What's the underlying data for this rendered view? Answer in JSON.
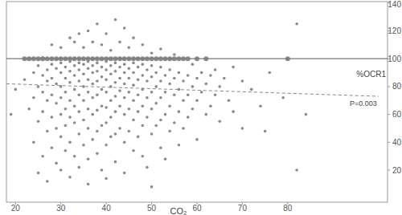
{
  "chart_data": {
    "type": "scatter",
    "x_label": "CO₂",
    "y_label": "%OCR1",
    "xlim": [
      18,
      102
    ],
    "ylim": [
      -3,
      141
    ],
    "xticks": [
      20,
      30,
      40,
      50,
      60,
      70,
      80
    ],
    "yticks": [
      20,
      40,
      60,
      80,
      100,
      120,
      140
    ],
    "grid": false,
    "color": "#8a8a8a",
    "marker": "circle",
    "reference_line": 100,
    "trend_line": {
      "x": [
        18,
        100
      ],
      "y": [
        82,
        73
      ],
      "label": "P=0.003"
    },
    "x": [
      19,
      20,
      22,
      22,
      23,
      23,
      24,
      24,
      24,
      24,
      25,
      25,
      25,
      25,
      25,
      26,
      26,
      26,
      26,
      26,
      26,
      27,
      27,
      27,
      27,
      27,
      27,
      28,
      28,
      28,
      28,
      28,
      28,
      28,
      29,
      29,
      29,
      29,
      29,
      29,
      30,
      30,
      30,
      30,
      30,
      30,
      30,
      30,
      30,
      31,
      31,
      31,
      31,
      31,
      31,
      31,
      32,
      32,
      32,
      32,
      32,
      32,
      32,
      32,
      32,
      33,
      33,
      33,
      33,
      33,
      33,
      33,
      33,
      34,
      34,
      34,
      34,
      34,
      34,
      34,
      34,
      34,
      35,
      35,
      35,
      35,
      35,
      35,
      35,
      35,
      36,
      36,
      36,
      36,
      36,
      36,
      36,
      36,
      36,
      36,
      37,
      37,
      37,
      37,
      37,
      37,
      37,
      37,
      38,
      38,
      38,
      38,
      38,
      38,
      38,
      38,
      38,
      39,
      39,
      39,
      39,
      39,
      39,
      39,
      39,
      40,
      40,
      40,
      40,
      40,
      40,
      40,
      40,
      40,
      40,
      41,
      41,
      41,
      41,
      41,
      41,
      41,
      41,
      42,
      42,
      42,
      42,
      42,
      42,
      42,
      42,
      42,
      43,
      43,
      43,
      43,
      43,
      43,
      43,
      44,
      44,
      44,
      44,
      44,
      44,
      44,
      44,
      44,
      45,
      45,
      45,
      45,
      45,
      45,
      45,
      46,
      46,
      46,
      46,
      46,
      46,
      46,
      46,
      47,
      47,
      47,
      47,
      47,
      47,
      48,
      48,
      48,
      48,
      48,
      48,
      48,
      48,
      49,
      49,
      49,
      49,
      49,
      49,
      50,
      50,
      50,
      50,
      50,
      50,
      50,
      50,
      51,
      51,
      51,
      51,
      51,
      52,
      52,
      52,
      52,
      52,
      52,
      52,
      53,
      53,
      53,
      53,
      53,
      54,
      54,
      54,
      54,
      54,
      55,
      55,
      55,
      55,
      55,
      56,
      56,
      56,
      56,
      56,
      57,
      57,
      57,
      57,
      58,
      58,
      58,
      58,
      59,
      59,
      59,
      60,
      60,
      60,
      60,
      61,
      61,
      62,
      62,
      62,
      63,
      63,
      64,
      64,
      65,
      65,
      66,
      67,
      68,
      68,
      70,
      70,
      72,
      74,
      75,
      76,
      79,
      80,
      82,
      82,
      84
    ],
    "y": [
      60,
      78,
      85,
      100,
      100,
      64,
      100,
      90,
      72,
      40,
      100,
      95,
      80,
      18,
      55,
      100,
      88,
      76,
      62,
      30,
      100,
      100,
      92,
      84,
      70,
      48,
      12,
      100,
      96,
      86,
      74,
      58,
      36,
      110,
      100,
      93,
      82,
      68,
      50,
      25,
      100,
      97,
      90,
      80,
      72,
      60,
      44,
      20,
      108,
      100,
      94,
      86,
      76,
      64,
      52,
      34,
      100,
      98,
      91,
      83,
      70,
      58,
      40,
      115,
      15,
      100,
      95,
      88,
      78,
      66,
      54,
      30,
      112,
      100,
      97,
      92,
      84,
      74,
      62,
      46,
      22,
      118,
      100,
      96,
      89,
      80,
      70,
      56,
      38,
      108,
      100,
      98,
      93,
      85,
      76,
      64,
      50,
      28,
      120,
      10,
      100,
      95,
      90,
      82,
      72,
      60,
      42,
      112,
      100,
      97,
      91,
      84,
      74,
      63,
      48,
      32,
      125,
      100,
      94,
      87,
      78,
      66,
      52,
      20,
      110,
      100,
      98,
      92,
      85,
      76,
      65,
      54,
      38,
      118,
      14,
      100,
      95,
      89,
      80,
      70,
      58,
      44,
      106,
      100,
      97,
      91,
      83,
      73,
      62,
      46,
      26,
      128,
      100,
      94,
      86,
      77,
      66,
      50,
      112,
      100,
      96,
      90,
      82,
      72,
      60,
      40,
      122,
      18,
      100,
      93,
      86,
      76,
      64,
      48,
      108,
      100,
      97,
      90,
      81,
      70,
      56,
      34,
      115,
      100,
      94,
      85,
      74,
      62,
      44,
      100,
      96,
      88,
      78,
      66,
      52,
      30,
      110,
      100,
      92,
      84,
      72,
      58,
      22,
      100,
      95,
      87,
      76,
      64,
      46,
      104,
      8,
      100,
      90,
      80,
      68,
      52,
      100,
      94,
      84,
      72,
      56,
      36,
      107,
      100,
      88,
      76,
      60,
      28,
      100,
      92,
      82,
      66,
      48,
      100,
      86,
      74,
      54,
      103,
      100,
      90,
      78,
      62,
      38,
      100,
      84,
      70,
      50,
      100,
      88,
      74,
      58,
      96,
      80,
      64,
      100,
      86,
      70,
      42,
      90,
      76,
      100,
      82,
      60,
      88,
      66,
      92,
      74,
      80,
      55,
      86,
      70,
      94,
      62,
      84,
      50,
      78,
      66,
      48,
      90,
      72,
      100,
      125,
      20,
      60
    ]
  }
}
